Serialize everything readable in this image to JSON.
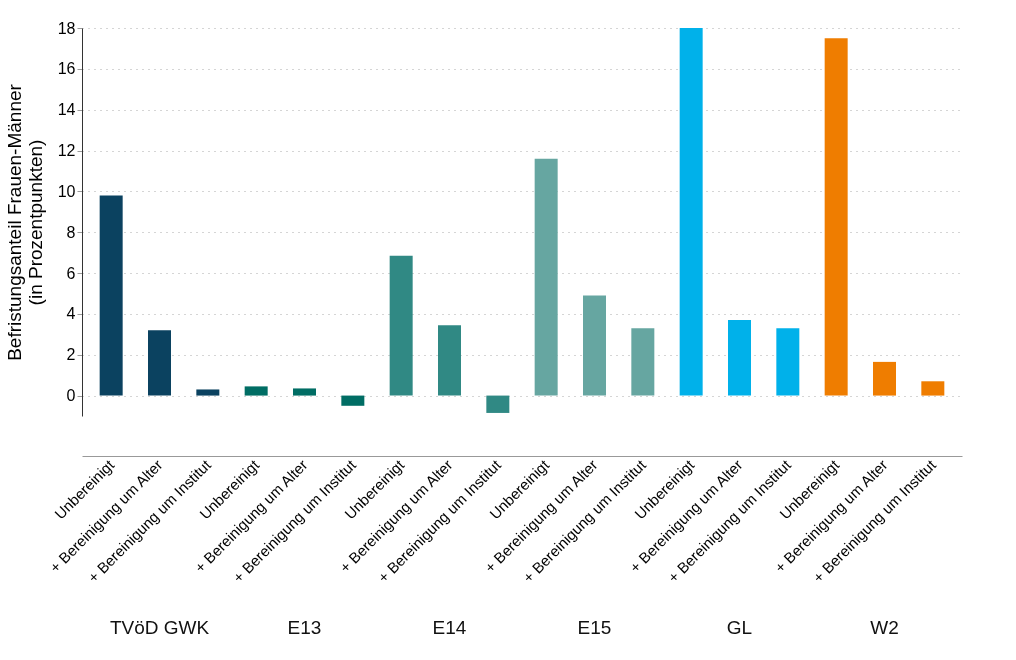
{
  "chart_data": {
    "type": "bar",
    "ylabel": "Befristungsanteil Frauen-Männer\n(in Prozentpunkten)",
    "categories": [
      "Unbereinigt",
      "+ Bereinigung um Alter",
      "+ Bereinigung um Institut",
      "Unbereinigt",
      "+ Bereinigung um Alter",
      "+ Bereinigung um Institut",
      "Unbereinigt",
      "+ Bereinigung um Alter",
      "+ Bereinigung um Institut",
      "Unbereinigt",
      "+ Bereinigung um Alter",
      "+ Bereinigung um Institut",
      "Unbereinigt",
      "+ Bereinigung um Alter",
      "+ Bereinigung um Institut",
      "Unbereinigt",
      "+ Bereinigung um Alter",
      "+ Bereinigung um Institut"
    ],
    "series": [
      {
        "color": "#0b4260",
        "values": [
          9.8,
          3.2,
          0.3,
          null,
          null,
          null,
          null,
          null,
          null,
          null,
          null,
          null,
          null,
          null,
          null,
          null,
          null,
          null
        ]
      },
      {
        "color": "#006d64",
        "values": [
          null,
          null,
          null,
          0.45,
          0.35,
          -0.5,
          null,
          null,
          null,
          null,
          null,
          null,
          null,
          null,
          null,
          null,
          null,
          null
        ]
      },
      {
        "color": "#308984",
        "values": [
          null,
          null,
          null,
          null,
          null,
          null,
          6.85,
          3.45,
          -0.85,
          null,
          null,
          null,
          null,
          null,
          null,
          null,
          null,
          null
        ]
      },
      {
        "color": "#66a6a1",
        "values": [
          null,
          null,
          null,
          null,
          null,
          null,
          null,
          null,
          null,
          11.6,
          4.9,
          3.3,
          null,
          null,
          null,
          null,
          null,
          null
        ]
      },
      {
        "color": "#00b1ea",
        "values": [
          null,
          null,
          null,
          null,
          null,
          null,
          null,
          null,
          null,
          null,
          null,
          null,
          18.0,
          3.7,
          3.3,
          null,
          null,
          null
        ]
      },
      {
        "color": "#ef7d00",
        "values": [
          null,
          null,
          null,
          null,
          null,
          null,
          null,
          null,
          null,
          null,
          null,
          null,
          null,
          null,
          null,
          17.5,
          1.65,
          0.7
        ]
      }
    ],
    "annotations": [
      "TVöD GWK",
      "E13",
      "E14",
      "E15",
      "GL",
      "W2"
    ],
    "ylim": [
      -1,
      18
    ],
    "yticks": [
      0,
      2,
      4,
      6,
      8,
      10,
      12,
      14,
      16,
      18
    ],
    "grid": "y",
    "legend": false
  }
}
